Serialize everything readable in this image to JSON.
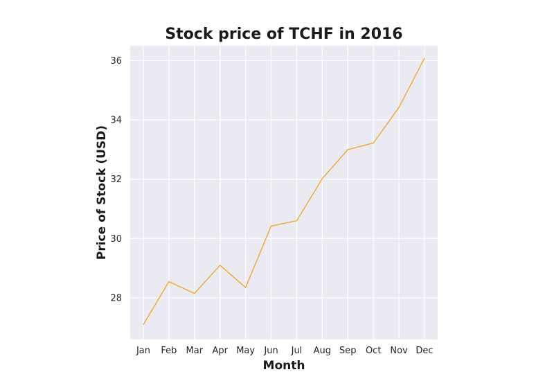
{
  "chart_data": {
    "type": "line",
    "title": "Stock price of TCHF in 2016",
    "xlabel": "Month",
    "ylabel": "Price of Stock (USD)",
    "categories": [
      "Jan",
      "Feb",
      "Mar",
      "Apr",
      "May",
      "Jun",
      "Jul",
      "Aug",
      "Sep",
      "Oct",
      "Nov",
      "Dec"
    ],
    "series": [
      {
        "values": [
          27.1,
          28.55,
          28.15,
          29.1,
          28.35,
          30.42,
          30.6,
          32.02,
          33.0,
          33.22,
          34.42,
          36.08
        ],
        "color": "#f5a623"
      }
    ],
    "ylim": [
      26.6,
      36.5
    ],
    "yticks": [
      28,
      30,
      32,
      34,
      36
    ],
    "grid": true,
    "plot_background": "#eaeaf2",
    "legend": "none"
  }
}
